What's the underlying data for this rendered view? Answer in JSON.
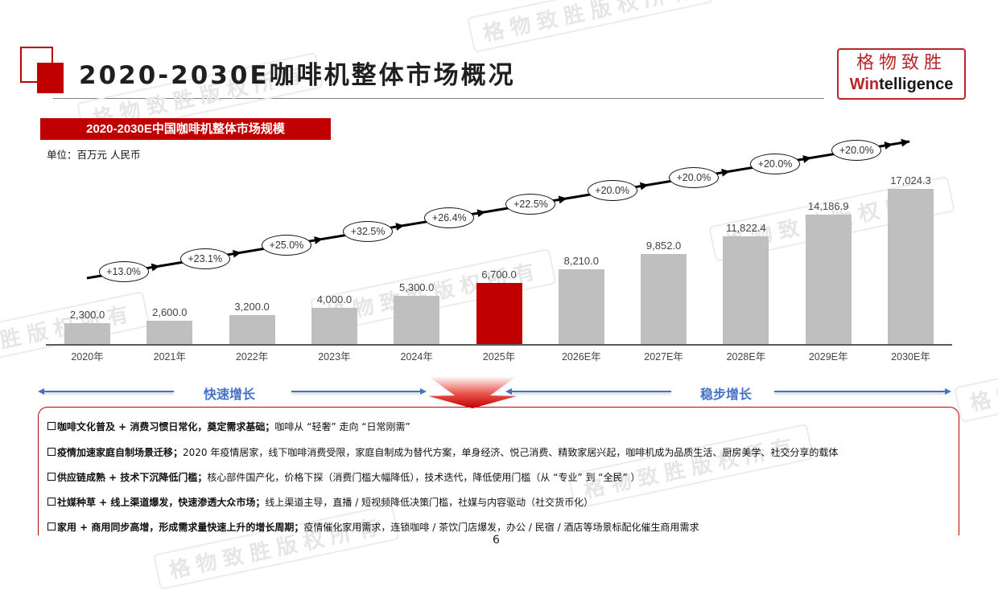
{
  "header": {
    "title": "2020-2030E咖啡机整体市场概况",
    "logo_cn": "格物致胜",
    "logo_en_accent": "Win",
    "logo_en_rest": "telligence"
  },
  "watermark": "格物致胜版权所有",
  "chart_section": {
    "banner": "2020-2030E中国咖啡机整体市场规模",
    "unit": "单位：百万元 人民币"
  },
  "chart_data": {
    "type": "bar",
    "title": "2020-2030E中国咖啡机整体市场规模",
    "ylabel": "单位：百万元 人民币",
    "xlabel": "",
    "categories": [
      "2020年",
      "2021年",
      "2022年",
      "2023年",
      "2024年",
      "2025年",
      "2026E年",
      "2027E年",
      "2028E年",
      "2029E年",
      "2030E年"
    ],
    "values": [
      2300.0,
      2600.0,
      3200.0,
      4000.0,
      5300.0,
      6700.0,
      8210.0,
      9852.0,
      11822.4,
      14186.9,
      17024.3
    ],
    "value_labels": [
      "2,300.0",
      "2,600.0",
      "3,200.0",
      "4,000.0",
      "5,300.0",
      "6,700.0",
      "8,210.0",
      "9,852.0",
      "11,822.4",
      "14,186.9",
      "17,024.3"
    ],
    "highlight_index": 5,
    "growth_rates": [
      "+13.0%",
      "+23.1%",
      "+25.0%",
      "+32.5%",
      "+26.4%",
      "+22.5%",
      "+20.0%",
      "+20.0%",
      "+20.0%",
      "+20.0%"
    ],
    "bar_color": "#bfbfbf",
    "highlight_color": "#c00000",
    "grid": false,
    "legend": "none",
    "ylim": [
      0,
      18000
    ]
  },
  "phases": {
    "left_label": "快速增长",
    "right_label": "稳步增长",
    "color": "#4472c4"
  },
  "notes": [
    {
      "bold": "咖啡文化普及 + 消费习惯日常化，奠定需求基础；",
      "text": "咖啡从 “轻奢” 走向 “日常刚需”"
    },
    {
      "bold": "疫情加速家庭自制场景迁移；",
      "text": "2020 年疫情居家，线下咖啡消费受限，家庭自制成为替代方案，单身经济、悦己消费、精致家居兴起，咖啡机成为品质生活、厨房美学、社交分享的载体"
    },
    {
      "bold": "供应链成熟 + 技术下沉降低门槛；",
      "text": "核心部件国产化，价格下探（消费门槛大幅降低），技术迭代，降低使用门槛（从 “专业” 到 “全民” ）"
    },
    {
      "bold": "社媒种草 + 线上渠道爆发，快速渗透大众市场；",
      "text": "线上渠道主导，直播 / 短视频降低决策门槛，社媒与内容驱动（社交货币化）"
    },
    {
      "bold": "家用 + 商用同步高增，形成需求量快速上升的增长周期；",
      "text": "疫情催化家用需求，连锁咖啡 / 茶饮门店爆发，办公 / 民宿 / 酒店等场景标配化催生商用需求"
    }
  ],
  "page_number": "6",
  "colors": {
    "accent": "#c00000",
    "bar": "#bfbfbf",
    "phase": "#4472c4"
  }
}
